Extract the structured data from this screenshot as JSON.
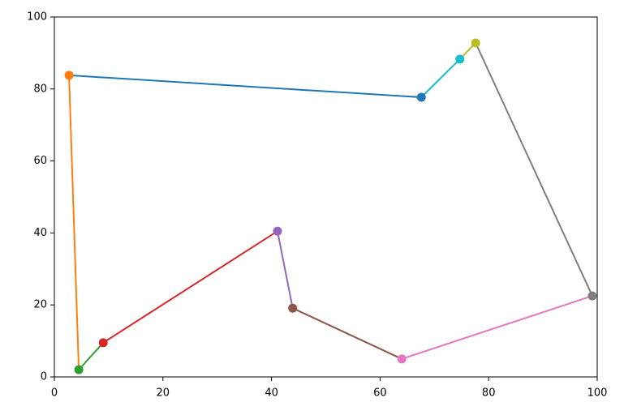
{
  "chart_data": {
    "type": "line",
    "markers": true,
    "xlim": [
      0,
      100
    ],
    "ylim": [
      0,
      100
    ],
    "xticks": [
      0,
      20,
      40,
      60,
      80,
      100
    ],
    "yticks": [
      0,
      20,
      40,
      60,
      80,
      100
    ],
    "grid": false,
    "series": [
      {
        "color": "#1f77b4",
        "x": [
          67.6,
          2.7
        ],
        "values": [
          77.7,
          83.8
        ]
      },
      {
        "color": "#ff7f0e",
        "x": [
          2.7,
          4.5
        ],
        "values": [
          83.8,
          2.0
        ]
      },
      {
        "color": "#2ca02c",
        "x": [
          4.5,
          9.0
        ],
        "values": [
          2.0,
          9.5
        ]
      },
      {
        "color": "#d62728",
        "x": [
          9.0,
          41.1
        ],
        "values": [
          9.5,
          40.5
        ]
      },
      {
        "color": "#9467bd",
        "x": [
          41.1,
          43.9
        ],
        "values": [
          40.5,
          19.1
        ]
      },
      {
        "color": "#8c564b",
        "x": [
          43.9,
          64.0
        ],
        "values": [
          19.1,
          5.0
        ]
      },
      {
        "color": "#e377c2",
        "x": [
          64.0,
          99.1
        ],
        "values": [
          5.0,
          22.5
        ]
      },
      {
        "color": "#7f7f7f",
        "x": [
          99.1,
          77.6
        ],
        "values": [
          22.5,
          92.8
        ]
      },
      {
        "color": "#bcbd22",
        "x": [
          77.6,
          74.7
        ],
        "values": [
          92.8,
          88.3
        ]
      },
      {
        "color": "#17becf",
        "x": [
          74.7,
          67.6
        ],
        "values": [
          88.3,
          77.7
        ]
      }
    ]
  }
}
